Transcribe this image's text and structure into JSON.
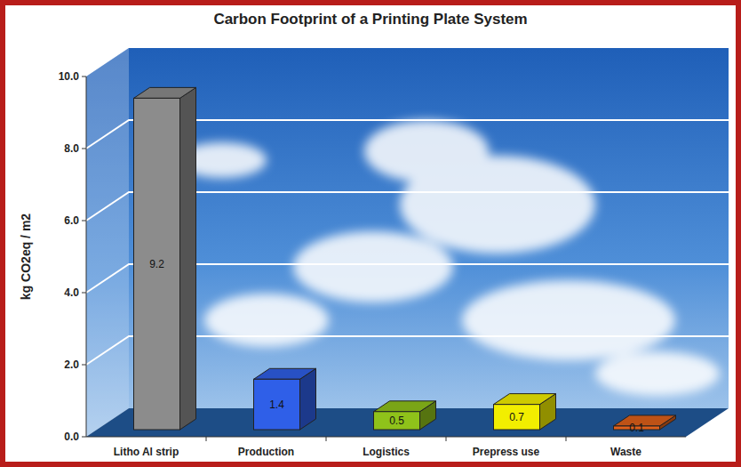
{
  "chart_data": {
    "type": "bar",
    "title": "Carbon Footprint of a Printing Plate System",
    "y_label": "kg CO2eq / m2",
    "categories": [
      "Litho Al strip",
      "Production",
      "Logistics",
      "Prepress use",
      "Waste"
    ],
    "values": [
      9.2,
      1.4,
      0.5,
      0.7,
      0.1
    ],
    "colors": [
      "#8c8c8c",
      "#2f5fe8",
      "#8fc21a",
      "#f2ee00",
      "#e0601a"
    ],
    "ylim": [
      0,
      10
    ],
    "yticks": [
      {
        "value": 0,
        "label": "0.0"
      },
      {
        "value": 2,
        "label": "2.0"
      },
      {
        "value": 4,
        "label": "4.0"
      },
      {
        "value": 6,
        "label": "6.0"
      },
      {
        "value": 8,
        "label": "8.0"
      },
      {
        "value": 10,
        "label": "10.0"
      }
    ],
    "grid": true,
    "data_labels": true
  }
}
